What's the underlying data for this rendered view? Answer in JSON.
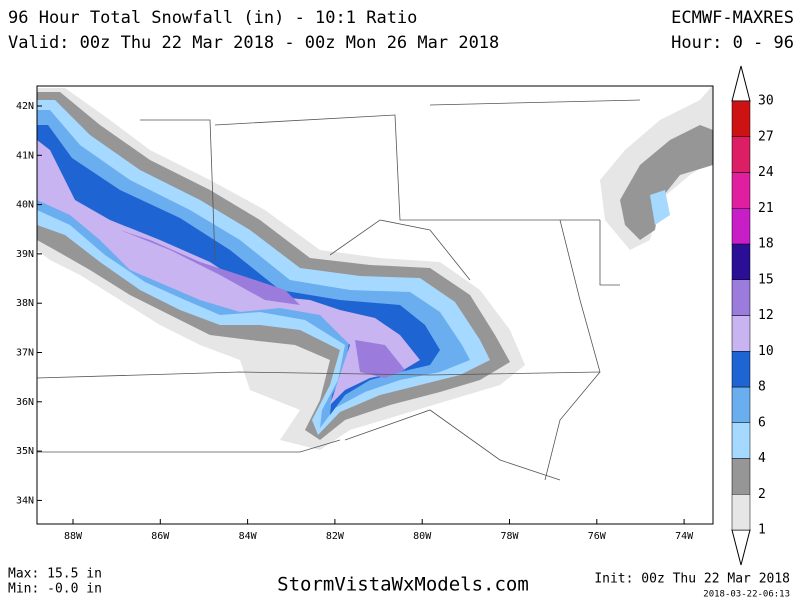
{
  "header": {
    "title": "96 Hour Total Snowfall (in) - 10:1 Ratio",
    "valid": "Valid: 00z Thu 22 Mar 2018 - 00z Mon 26 Mar 2018",
    "model": "ECMWF-MAXRES",
    "hour": "Hour: 0 - 96"
  },
  "map": {
    "lat_labels": [
      "42N",
      "41N",
      "40N",
      "39N",
      "38N",
      "37N",
      "36N",
      "35N",
      "34N"
    ],
    "lon_labels": [
      "88W",
      "86W",
      "84W",
      "82W",
      "80W",
      "78W",
      "76W",
      "74W"
    ]
  },
  "colorbar": {
    "levels": [
      1,
      2,
      4,
      6,
      8,
      10,
      12,
      15,
      18,
      21,
      24,
      27,
      30
    ],
    "colors": [
      "#e6e6e6",
      "#969696",
      "#a6d9ff",
      "#6aaef0",
      "#1e64d2",
      "#c8b4f0",
      "#9b7bdc",
      "#2a0f96",
      "#c81ec8",
      "#e01ea0",
      "#dc1e64",
      "#cc1212"
    ]
  },
  "footer": {
    "max": "Max: 15.5 in",
    "min": "Min: -0.0 in",
    "site": "StormVistaWxModels.com",
    "init": "Init: 00z Thu 22 Mar 2018",
    "stamp": "2018-03-22-06:13"
  }
}
